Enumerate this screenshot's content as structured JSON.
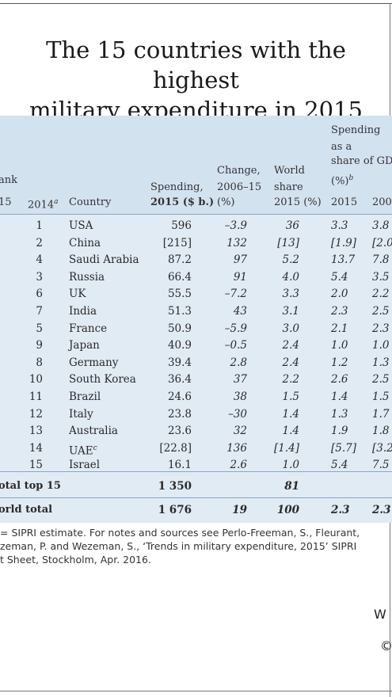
{
  "title": {
    "line1": "The 15 countries with the highest",
    "line2": "military expenditure in 2015"
  },
  "table": {
    "headers": {
      "rank": "ank",
      "rank_2015": "15",
      "rank_2014": "2014",
      "rank_2014_sup": "a",
      "country": "Country",
      "spending_line1": "Spending,",
      "spending_line2": "2015 ($ b.)",
      "change_line1": "Change,",
      "change_line2": "2006–15",
      "change_line3": "(%)",
      "world_line1": "World",
      "world_line2": "share",
      "world_line3": "2015 (%)",
      "gdp_line1": "Spending",
      "gdp_line2": "as a",
      "gdp_line3": "share of GD",
      "gdp_line4": "(%)",
      "gdp_line4_sup": "b",
      "gdp_2015": "2015",
      "gdp_2006": "200"
    },
    "rows": [
      {
        "rank2014": "1",
        "country": "USA",
        "spending": "596",
        "change": "–3.9",
        "share": "36",
        "gdp2015": "3.3",
        "gdp2006": "3.8"
      },
      {
        "rank2014": "2",
        "country": "China",
        "spending": "[215]",
        "change": "132",
        "share": "[13]",
        "gdp2015": "[1.9]",
        "gdp2006": "[2.0"
      },
      {
        "rank2014": "4",
        "country": "Saudi Arabia",
        "spending": "87.2",
        "change": "97",
        "share": "5.2",
        "gdp2015": "13.7",
        "gdp2006": "7.8"
      },
      {
        "rank2014": "3",
        "country": "Russia",
        "spending": "66.4",
        "change": "91",
        "share": "4.0",
        "gdp2015": "5.4",
        "gdp2006": "3.5"
      },
      {
        "rank2014": "6",
        "country": "UK",
        "spending": "55.5",
        "change": "–7.2",
        "share": "3.3",
        "gdp2015": "2.0",
        "gdp2006": "2.2"
      },
      {
        "rank2014": "7",
        "country": "India",
        "spending": "51.3",
        "change": "43",
        "share": "3.1",
        "gdp2015": "2.3",
        "gdp2006": "2.5"
      },
      {
        "rank2014": "5",
        "country": "France",
        "spending": "50.9",
        "change": "–5.9",
        "share": "3.0",
        "gdp2015": "2.1",
        "gdp2006": "2.3"
      },
      {
        "rank2014": "9",
        "country": "Japan",
        "spending": "40.9",
        "change": "–0.5",
        "share": "2.4",
        "gdp2015": "1.0",
        "gdp2006": "1.0"
      },
      {
        "rank2014": "8",
        "country": "Germany",
        "spending": "39.4",
        "change": "2.8",
        "share": "2.4",
        "gdp2015": "1.2",
        "gdp2006": "1.3"
      },
      {
        "rank2014": "10",
        "country": "South Korea",
        "spending": "36.4",
        "change": "37",
        "share": "2.2",
        "gdp2015": "2.6",
        "gdp2006": "2.5"
      },
      {
        "rank2014": "11",
        "country": "Brazil",
        "spending": "24.6",
        "change": "38",
        "share": "1.5",
        "gdp2015": "1.4",
        "gdp2006": "1.5"
      },
      {
        "rank2014": "12",
        "country": "Italy",
        "spending": "23.8",
        "change": "–30",
        "share": "1.4",
        "gdp2015": "1.3",
        "gdp2006": "1.7"
      },
      {
        "rank2014": "13",
        "country": "Australia",
        "spending": "23.6",
        "change": "32",
        "share": "1.4",
        "gdp2015": "1.9",
        "gdp2006": "1.8"
      },
      {
        "rank2014": "14",
        "country": "UAE",
        "country_sup": "c",
        "spending": "[22.8]",
        "change": "136",
        "share": "[1.4]",
        "gdp2015": "[5.7]",
        "gdp2006": "[3.2"
      },
      {
        "rank2014": "15",
        "country": "Israel",
        "spending": "16.1",
        "change": "2.6",
        "share": "1.0",
        "gdp2015": "5.4",
        "gdp2006": "7.5"
      }
    ],
    "total_top15": {
      "label": "otal top 15",
      "spending": "1 350",
      "share": "81"
    },
    "world_total": {
      "label": "orld total",
      "spending": "1 676",
      "change": "19",
      "share": "100",
      "gdp2015": "2.3",
      "gdp2006": "2.3"
    }
  },
  "notes": {
    "line1": "= SIPRI estimate. For notes and sources see Perlo-Freeman, S., Fleurant,",
    "line2": "zeman, P. and Wezeman, S., ‘Trends in military expenditure, 2015’ SIPRI",
    "line3": "t Sheet, Stockholm, Apr. 2016."
  },
  "footer": {
    "fragment1": "W",
    "fragment2": "©"
  }
}
